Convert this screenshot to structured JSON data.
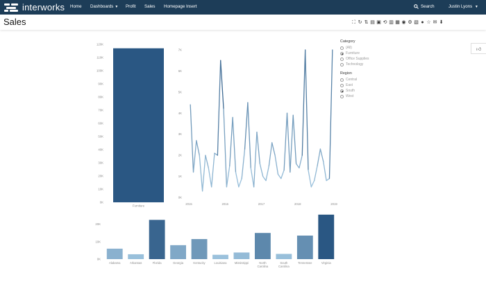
{
  "brand": {
    "name": "interworks"
  },
  "nav": {
    "items": [
      {
        "label": "Home"
      },
      {
        "label": "Dashboards",
        "caret": true
      },
      {
        "label": "Profit"
      },
      {
        "label": "Sales"
      },
      {
        "label": "Homepage Insert"
      }
    ],
    "search_label": "Search",
    "user_label": "Justin Lyons"
  },
  "page": {
    "title": "Sales"
  },
  "toolbar": {
    "icons": [
      "fullscreen-icon",
      "refresh-icon",
      "sort-icon",
      "export-pdf-icon",
      "export-image-icon",
      "revert-icon",
      "save-icon",
      "table-icon",
      "share-icon",
      "settings-icon",
      "print-icon",
      "subscribe-icon",
      "favorite-icon",
      "email-icon",
      "download-icon"
    ]
  },
  "filters": {
    "category": {
      "title": "Category",
      "options": [
        "(All)",
        "Furniture",
        "Office Supplies",
        "Technology"
      ],
      "selected": "Furniture"
    },
    "region": {
      "title": "Region",
      "options": [
        "Central",
        "East",
        "South",
        "West"
      ],
      "selected": "South"
    }
  },
  "colors": {
    "nav_bg": "#1d3d58",
    "bar_dark": "#2a5783",
    "bar_light": "#a7cde6"
  },
  "chart_data": [
    {
      "type": "bar",
      "categories": [
        "Furniture"
      ],
      "values": [
        117000
      ],
      "ylim": [
        0,
        120000
      ],
      "yticks": [
        "0K",
        "10K",
        "20K",
        "30K",
        "40K",
        "50K",
        "60K",
        "70K",
        "80K",
        "90K",
        "100K",
        "110K",
        "120K"
      ],
      "color": "#2a5783"
    },
    {
      "type": "line",
      "xticks": [
        "2015",
        "2016",
        "2017",
        "2018",
        "2019"
      ],
      "yticks": [
        "0K",
        "1K",
        "2K",
        "3K",
        "4K",
        "5K",
        "6K",
        "7K"
      ],
      "ylim": [
        0,
        7000
      ],
      "x": [
        "2015-01",
        "2015-02",
        "2015-03",
        "2015-04",
        "2015-05",
        "2015-06",
        "2015-07",
        "2015-08",
        "2015-09",
        "2015-10",
        "2015-11",
        "2015-12",
        "2016-01",
        "2016-02",
        "2016-03",
        "2016-04",
        "2016-05",
        "2016-06",
        "2016-07",
        "2016-08",
        "2016-09",
        "2016-10",
        "2016-11",
        "2016-12",
        "2017-01",
        "2017-02",
        "2017-03",
        "2017-04",
        "2017-05",
        "2017-06",
        "2017-07",
        "2017-08",
        "2017-09",
        "2017-10",
        "2017-11",
        "2017-12",
        "2018-01",
        "2018-02",
        "2018-03",
        "2018-04",
        "2018-05",
        "2018-06",
        "2018-07",
        "2018-08",
        "2018-09",
        "2018-10",
        "2018-11",
        "2018-12"
      ],
      "values": [
        4400,
        1200,
        2700,
        2000,
        300,
        2000,
        1400,
        500,
        2100,
        2000,
        6500,
        4200,
        500,
        1500,
        3800,
        1200,
        500,
        900,
        2300,
        4500,
        1400,
        500,
        3100,
        1600,
        1000,
        800,
        1500,
        2600,
        2000,
        1100,
        900,
        1300,
        4000,
        1200,
        3900,
        1600,
        1400,
        2000,
        7000,
        1300,
        500,
        800,
        1500,
        2300,
        1700,
        800,
        900,
        7000
      ],
      "color": "#2a5783"
    },
    {
      "type": "bar",
      "categories": [
        "Alabama",
        "Arkansas",
        "Florida",
        "Georgia",
        "Kentucky",
        "Louisiana",
        "Mississippi",
        "North Carolina",
        "South Carolina",
        "Tennessee",
        "Virginia"
      ],
      "values": [
        6000,
        2800,
        22500,
        8000,
        11500,
        2500,
        3800,
        15000,
        3000,
        13500,
        25500
      ],
      "ylim": [
        0,
        27000
      ],
      "yticks": [
        "0K",
        "10K",
        "20K"
      ],
      "color_scale": [
        "#a7cde6",
        "#2a5783"
      ]
    }
  ]
}
